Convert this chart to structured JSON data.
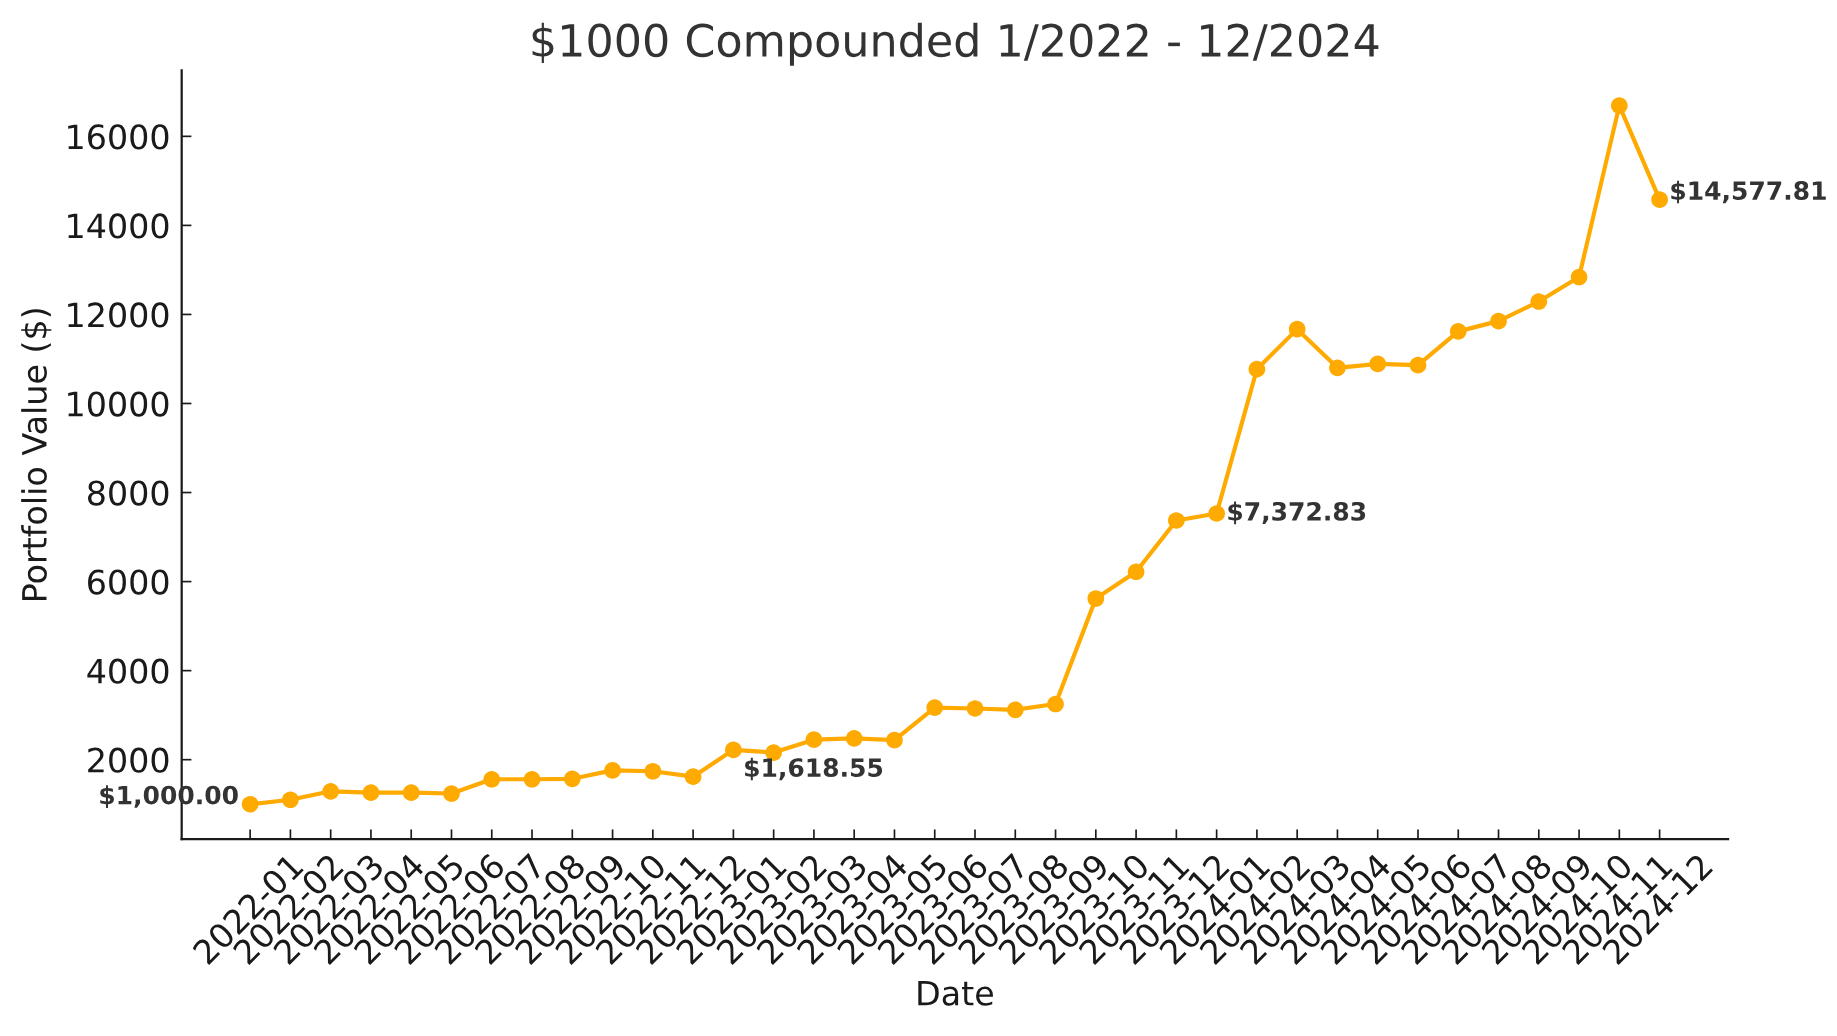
{
  "chart_data": {
    "type": "line",
    "title": "$1000 Compounded 1/2022 - 12/2024",
    "xlabel": "Date",
    "ylabel": "Portfolio Value ($)",
    "categories": [
      "2022-01",
      "2022-02",
      "2022-03",
      "2022-04",
      "2022-05",
      "2022-06",
      "2022-07",
      "2022-08",
      "2022-09",
      "2022-10",
      "2022-11",
      "2022-12",
      "2023-01",
      "2023-02",
      "2023-03",
      "2023-04",
      "2023-05",
      "2023-06",
      "2023-07",
      "2023-08",
      "2023-09",
      "2023-10",
      "2023-11",
      "2023-12",
      "2024-01",
      "2024-02",
      "2024-03",
      "2024-04",
      "2024-05",
      "2024-06",
      "2024-07",
      "2024-08",
      "2024-09",
      "2024-10",
      "2024-11",
      "2024-12"
    ],
    "series": [
      {
        "color": "#ffaa00",
        "values": [
          1000,
          1100,
          1290,
          1260,
          1260,
          1240,
          1560,
          1560,
          1570,
          1760,
          1740,
          1618.55,
          2220,
          2160,
          2450,
          2480,
          2440,
          3170,
          3150,
          3120,
          3250,
          5620,
          6220,
          7372.83,
          7530,
          10770,
          11670,
          10800,
          10890,
          10860,
          11620,
          11850,
          12290,
          12840,
          16690,
          14577.81
        ]
      }
    ],
    "ylim": [
      215,
      17480
    ],
    "yticks": [
      2000,
      4000,
      6000,
      8000,
      10000,
      12000,
      14000,
      16000
    ],
    "marker": "circle",
    "line_style": "solid",
    "grid": false,
    "annotations": [
      {
        "text": "$1,000.00",
        "x": "2022-01",
        "y": 1000
      },
      {
        "text": "$1,618.55",
        "x": "2022-12",
        "y": 1618.55
      },
      {
        "text": "$7,372.83",
        "x": "2023-12",
        "y": 7372.83
      },
      {
        "text": "$14,577.81",
        "x": "2024-12",
        "y": 14577.81
      }
    ]
  }
}
